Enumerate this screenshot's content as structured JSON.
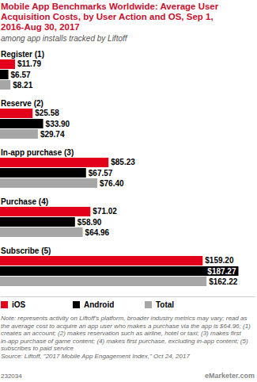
{
  "chart_data": {
    "type": "bar",
    "orientation": "horizontal",
    "title": "Mobile App Benchmarks Worldwide: Average User Acquisition Costs, by User Action and OS, Sep 1, 2016-Aug 30, 2017",
    "subtitle": "among app installs tracked by Liftoff",
    "categories": [
      "Register (1)",
      "Reserve (2)",
      "In-app purchase (3)",
      "Purchase (4)",
      "Subscribe (5)"
    ],
    "series": [
      {
        "name": "iOS",
        "color": "#e3001b",
        "values": [
          11.79,
          25.58,
          85.23,
          71.02,
          159.2
        ],
        "value_labels": [
          "$11.79",
          "$25.58",
          "$85.23",
          "$71.02",
          "$159.20"
        ]
      },
      {
        "name": "Android",
        "color": "#000000",
        "values": [
          6.57,
          33.9,
          67.57,
          58.9,
          187.27
        ],
        "value_labels": [
          "$6.57",
          "$33.90",
          "$67.57",
          "$58.90",
          "$187.27"
        ]
      },
      {
        "name": "Total",
        "color": "#a6a6a6",
        "values": [
          8.21,
          29.74,
          76.4,
          64.96,
          162.22
        ],
        "value_labels": [
          "$8.21",
          "$29.74",
          "$76.40",
          "$64.96",
          "$162.22"
        ]
      }
    ],
    "xlim": [
      0,
      200
    ],
    "tick_labels": false,
    "grid": false,
    "data_labels": true,
    "legend": "bottom-left",
    "note": "Note: represents activity on Liftoff's platform, broader industry metrics may vary; read as the average cost to acquire an app user who makes a purchase via the app is $64.96; (1) creates an account; (2) makes reservation such as airline, hotel or taxi; (3) makes first in-app purchase of game content; (4) makes first purchase, excluding in-app content; (5) subscribes to paid service",
    "source": "Source: Liftoff, \"2017 Mobile App Engagement Index,\" Oct 24, 2017",
    "chart_id": "232034",
    "logo": "eMarketer.com"
  }
}
